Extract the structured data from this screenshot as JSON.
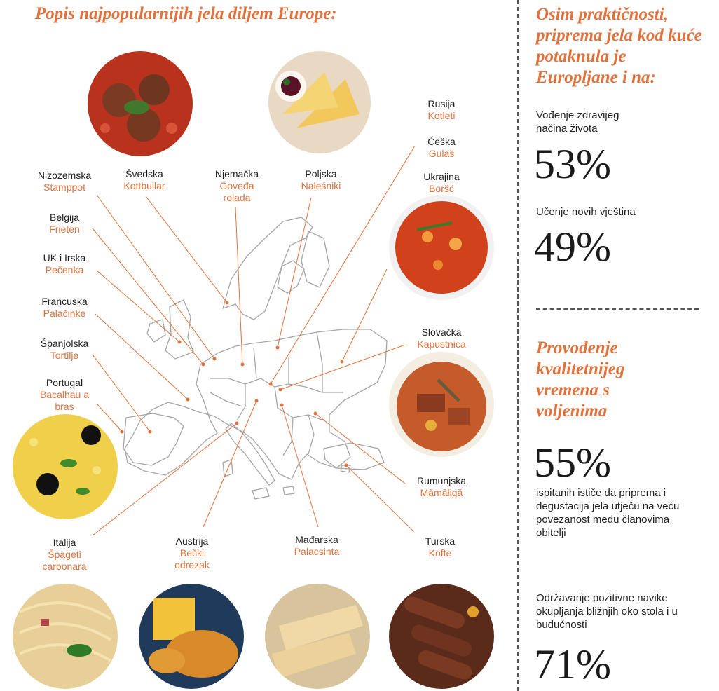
{
  "title": "Popis najpopularnijih jela diljem Europe:",
  "countries": [
    {
      "country": "Nizozemska",
      "dish": "Stamppot"
    },
    {
      "country": "Švedska",
      "dish": "Kottbullar"
    },
    {
      "country": "Njemačka",
      "dish": "Goveđa rolada"
    },
    {
      "country": "Poljska",
      "dish": "Naleśniki"
    },
    {
      "country": "Rusija",
      "dish": "Kotleti"
    },
    {
      "country": "Češka",
      "dish": "Gulaš"
    },
    {
      "country": "Ukrajina",
      "dish": "Boršč"
    },
    {
      "country": "Belgija",
      "dish": "Frieten"
    },
    {
      "country": "UK i Irska",
      "dish": "Pečenka"
    },
    {
      "country": "Francuska",
      "dish": "Palačinke"
    },
    {
      "country": "Španjolska",
      "dish": "Tortilje"
    },
    {
      "country": "Portugal",
      "dish": "Bacalhau a bras"
    },
    {
      "country": "Slovačka",
      "dish": "Kapustnica"
    },
    {
      "country": "Rumunjska",
      "dish": "Mămăligă"
    },
    {
      "country": "Turska",
      "dish": "Köfte"
    },
    {
      "country": "Italija",
      "dish": "Špageti carbonara"
    },
    {
      "country": "Austrija",
      "dish": "Bečki odrezak"
    },
    {
      "country": "Mađarska",
      "dish": "Palacsinta"
    }
  ],
  "right": {
    "heading1": "Osim praktičnosti, priprema jela kod kuće potaknula je Europljane i na:",
    "stat1_label": "Vođenje zdravijeg načina života",
    "stat1_value": "53%",
    "stat2_label": "Učenje novih vještina",
    "stat2_value": "49%",
    "heading2": "Provođenje kvalitetnijeg vremena s voljenima",
    "stat3_value": "55%",
    "stat3_text": "ispitanih ističe da priprema i degustacija jela utječu na veću povezanost među članovima obitelji",
    "stat4_text": "Održavanje pozitivne navike okupljanja bližnjih oko stola i u budućnosti",
    "stat4_value": "71%"
  },
  "colors": {
    "accent": "#e0733d",
    "text": "#222222",
    "map_outline": "#9a9a9a"
  }
}
